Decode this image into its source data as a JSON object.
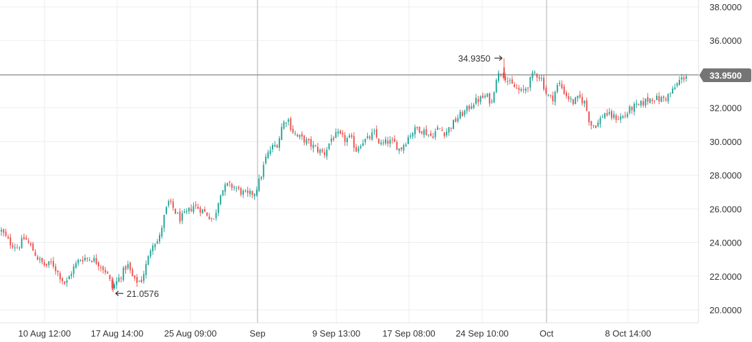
{
  "chart_data": {
    "type": "candlestick",
    "title": "",
    "xlabel": "",
    "ylabel": "",
    "ylim": [
      19.4,
      38.2
    ],
    "y_ticks": [
      "38.0000",
      "36.0000",
      "34.0000",
      "32.0000",
      "30.0000",
      "28.0000",
      "26.0000",
      "24.0000",
      "22.0000",
      "20.0000"
    ],
    "x_ticks": [
      "10 Aug 12:00",
      "17 Aug 14:00",
      "25 Aug 09:00",
      "Sep",
      "9 Sep 13:00",
      "17 Sep 08:00",
      "24 Sep 10:00",
      "Oct",
      "8 Oct 14:00"
    ],
    "major_x_ticks": [
      "Sep",
      "Oct"
    ],
    "grid": true,
    "current_price": "33.9500",
    "annotations": {
      "high": "34.9350",
      "low": "21.0576"
    },
    "colors": {
      "up": "#26a69a",
      "down": "#ef5350",
      "badge": "#757575",
      "price_line": "#757575",
      "grid": "#eeeeee"
    },
    "close_path": [
      [
        0,
        24.8
      ],
      [
        14,
        24.0
      ],
      [
        26,
        23.7
      ],
      [
        36,
        24.3
      ],
      [
        46,
        23.7
      ],
      [
        56,
        23.0
      ],
      [
        66,
        22.6
      ],
      [
        76,
        22.8
      ],
      [
        86,
        22.1
      ],
      [
        96,
        21.5
      ],
      [
        106,
        22.4
      ],
      [
        116,
        23.0
      ],
      [
        126,
        23.1
      ],
      [
        136,
        23.0
      ],
      [
        146,
        22.7
      ],
      [
        156,
        22.2
      ],
      [
        164,
        21.3
      ],
      [
        176,
        22.0
      ],
      [
        186,
        22.7
      ],
      [
        196,
        21.7
      ],
      [
        206,
        21.7
      ],
      [
        216,
        23.0
      ],
      [
        222,
        24.0
      ],
      [
        232,
        24.1
      ],
      [
        238,
        25.3
      ],
      [
        246,
        26.4
      ],
      [
        252,
        26.1
      ],
      [
        262,
        25.4
      ],
      [
        272,
        25.7
      ],
      [
        282,
        26.2
      ],
      [
        292,
        26.0
      ],
      [
        302,
        25.7
      ],
      [
        312,
        25.3
      ],
      [
        322,
        27.0
      ],
      [
        332,
        27.4
      ],
      [
        342,
        27.3
      ],
      [
        352,
        27.0
      ],
      [
        362,
        26.8
      ],
      [
        372,
        27.0
      ],
      [
        380,
        27.8
      ],
      [
        388,
        29.0
      ],
      [
        396,
        29.6
      ],
      [
        406,
        29.9
      ],
      [
        412,
        31.0
      ],
      [
        420,
        31.4
      ],
      [
        426,
        30.7
      ],
      [
        434,
        30.3
      ],
      [
        444,
        30.1
      ],
      [
        454,
        29.8
      ],
      [
        464,
        29.5
      ],
      [
        474,
        29.3
      ],
      [
        484,
        30.2
      ],
      [
        494,
        30.4
      ],
      [
        504,
        30.1
      ],
      [
        512,
        30.2
      ],
      [
        520,
        29.5
      ],
      [
        528,
        30.0
      ],
      [
        536,
        30.1
      ],
      [
        546,
        30.5
      ],
      [
        556,
        29.8
      ],
      [
        566,
        30.0
      ],
      [
        576,
        29.9
      ],
      [
        584,
        29.5
      ],
      [
        592,
        30.0
      ],
      [
        600,
        30.5
      ],
      [
        610,
        30.8
      ],
      [
        620,
        30.6
      ],
      [
        630,
        30.3
      ],
      [
        640,
        30.8
      ],
      [
        650,
        30.5
      ],
      [
        660,
        31.0
      ],
      [
        670,
        31.5
      ],
      [
        680,
        31.8
      ],
      [
        690,
        32.3
      ],
      [
        700,
        32.5
      ],
      [
        710,
        32.7
      ],
      [
        718,
        32.3
      ],
      [
        724,
        33.8
      ],
      [
        734,
        34.2
      ],
      [
        742,
        33.5
      ],
      [
        752,
        33.2
      ],
      [
        762,
        32.9
      ],
      [
        770,
        33.3
      ],
      [
        780,
        34.1
      ],
      [
        790,
        33.8
      ],
      [
        798,
        32.8
      ],
      [
        806,
        32.5
      ],
      [
        816,
        33.5
      ],
      [
        826,
        32.8
      ],
      [
        836,
        32.3
      ],
      [
        846,
        32.6
      ],
      [
        854,
        32.3
      ],
      [
        862,
        31.0
      ],
      [
        872,
        31.0
      ],
      [
        882,
        31.7
      ],
      [
        892,
        31.5
      ],
      [
        902,
        31.4
      ],
      [
        912,
        31.5
      ],
      [
        922,
        32.0
      ],
      [
        932,
        32.1
      ],
      [
        942,
        32.4
      ],
      [
        952,
        32.6
      ],
      [
        962,
        32.5
      ],
      [
        972,
        32.6
      ],
      [
        982,
        33.0
      ],
      [
        992,
        33.6
      ],
      [
        1002,
        33.95
      ]
    ]
  }
}
